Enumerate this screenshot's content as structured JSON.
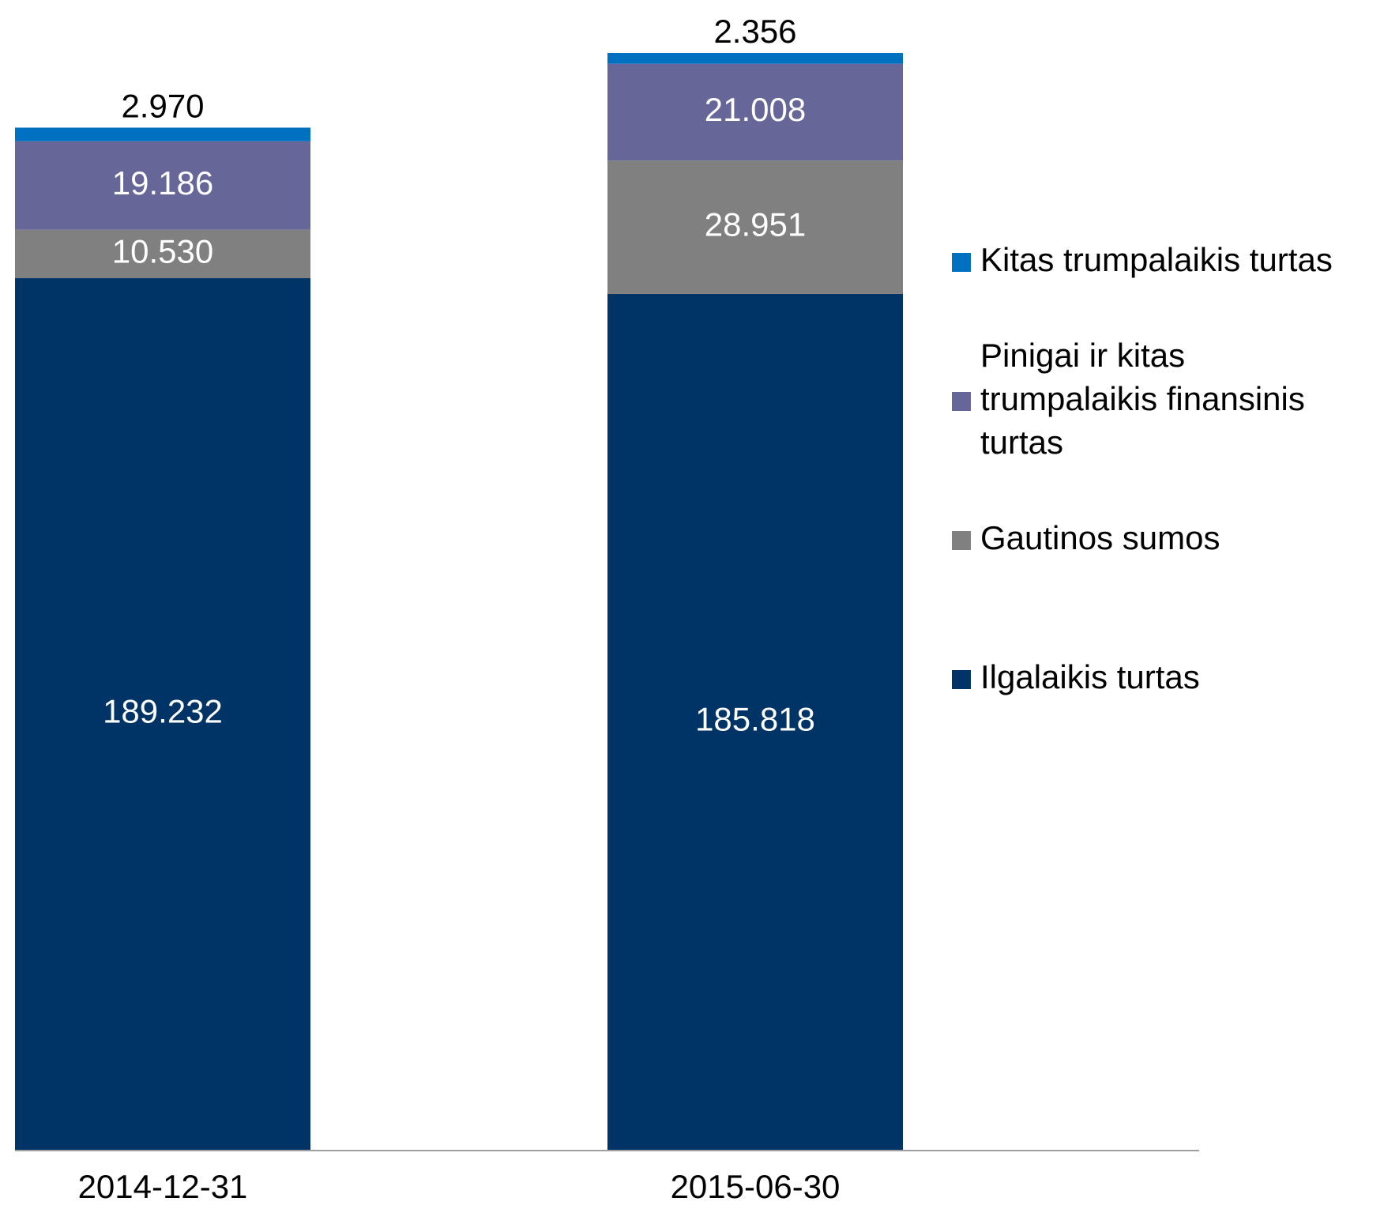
{
  "chart_data": {
    "type": "stacked_bar",
    "categories": [
      "2014-12-31",
      "2015-06-30"
    ],
    "series": [
      {
        "name": "Ilgalaikis turtas",
        "color": "#003366",
        "values": [
          189.232,
          185.818
        ],
        "value_labels": [
          "189.232",
          "185.818"
        ]
      },
      {
        "name": "Gautinos sumos",
        "color": "#808080",
        "values": [
          10.53,
          28.951
        ],
        "value_labels": [
          "10.530",
          "28.951"
        ]
      },
      {
        "name": "Pinigai ir kitas trumpalaikis finansinis turtas",
        "color": "#666699",
        "values": [
          19.186,
          21.008
        ],
        "value_labels": [
          "19.186",
          "21.008"
        ]
      },
      {
        "name": "Kitas trumpalaikis turtas",
        "color": "#0070c0",
        "values": [
          2.97,
          2.356
        ],
        "value_labels": [
          "2.970",
          "2.356"
        ]
      }
    ],
    "legend": "right"
  }
}
